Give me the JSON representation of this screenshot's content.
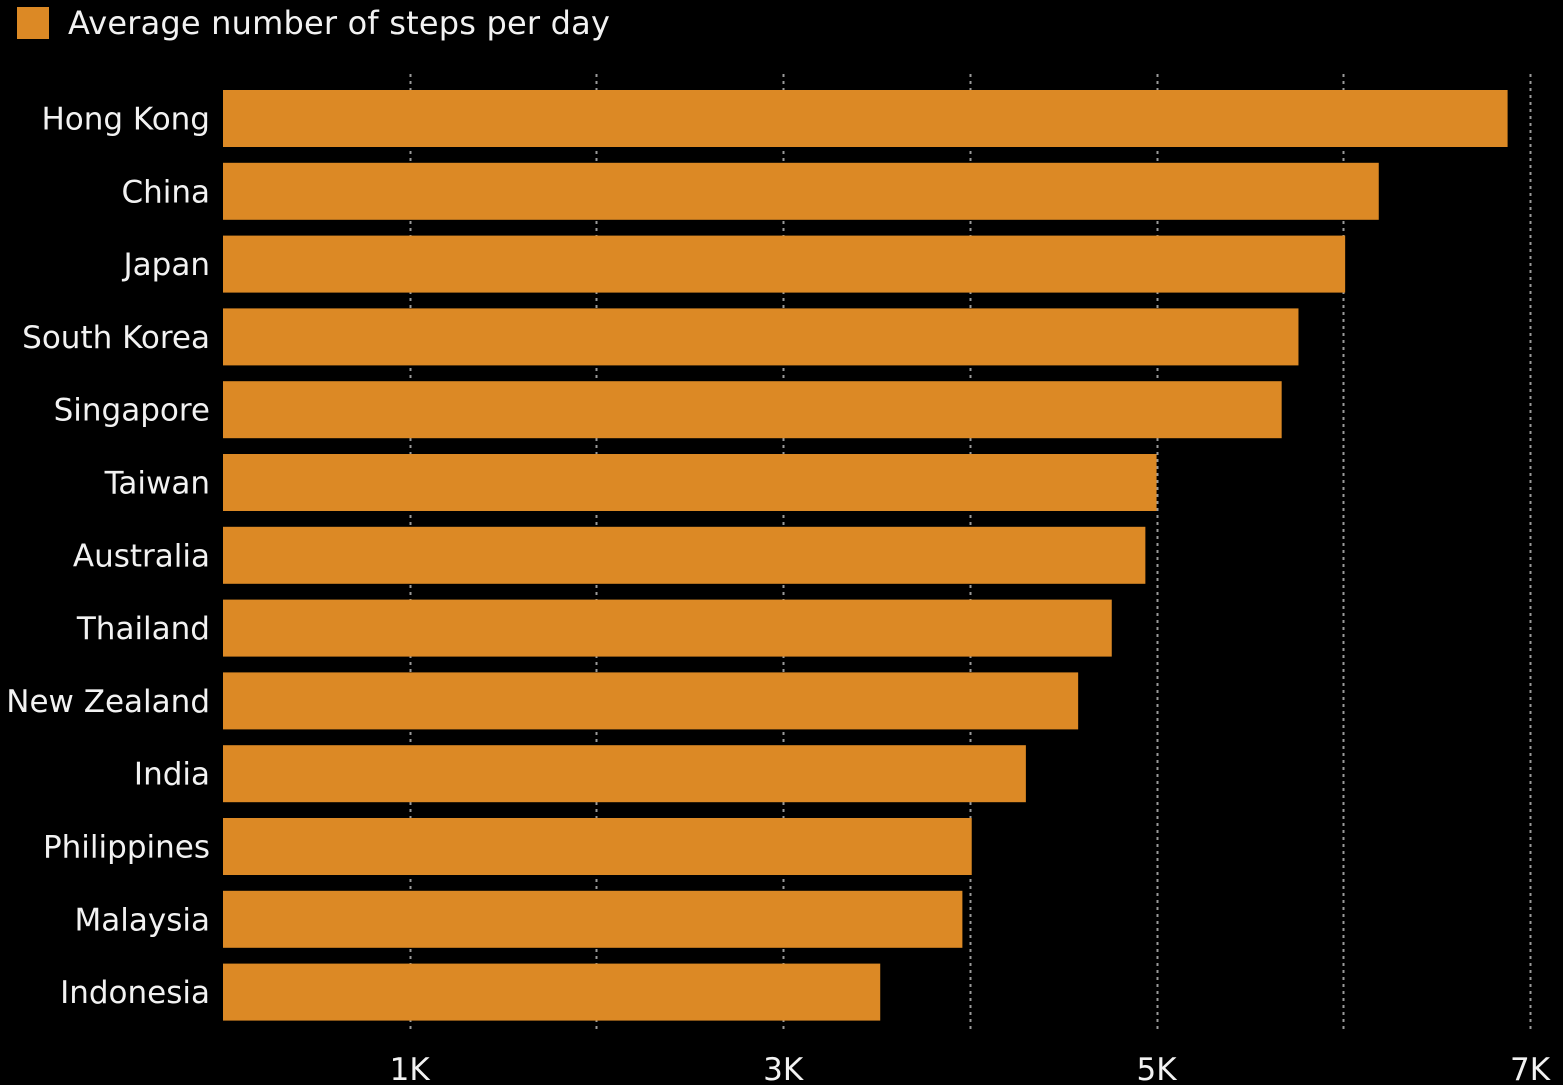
{
  "chart_data": {
    "type": "bar",
    "orientation": "horizontal",
    "legend": [
      {
        "label": "Average number of steps per day",
        "color": "#dc8925"
      }
    ],
    "categories": [
      "Hong Kong",
      "China",
      "Japan",
      "South Korea",
      "Singapore",
      "Taiwan",
      "Australia",
      "Thailand",
      "New Zealand",
      "India",
      "Philippines",
      "Malaysia",
      "Indonesia"
    ],
    "values": [
      6880,
      6190,
      6010,
      5760,
      5670,
      5000,
      4940,
      4760,
      4580,
      4300,
      4010,
      3960,
      3520
    ],
    "xlim": [
      0,
      7000
    ],
    "gridlines": [
      1000,
      2000,
      3000,
      4000,
      5000,
      6000,
      7000
    ],
    "x_ticks": [
      {
        "value": 1000,
        "label": "1K"
      },
      {
        "value": 3000,
        "label": "3K"
      },
      {
        "value": 5000,
        "label": "5K"
      },
      {
        "value": 7000,
        "label": "7K"
      }
    ],
    "grid": true,
    "bar_color": "#dc8925",
    "background": "#000000"
  }
}
